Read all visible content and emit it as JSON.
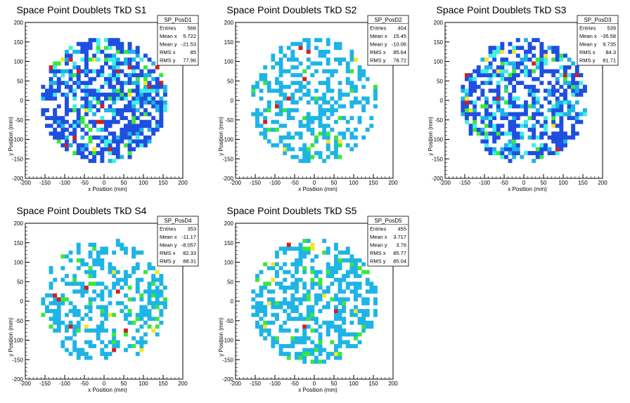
{
  "chart_data": [
    {
      "type": "heatmap",
      "title": "Space Point Doublets TkD S1",
      "xlabel": "x Position (mm)",
      "ylabel": "y Position (mm)",
      "xlim": [
        -200,
        200
      ],
      "ylim": [
        -200,
        200
      ],
      "xticks": [
        -200,
        -150,
        -100,
        -50,
        0,
        50,
        100,
        150,
        200
      ],
      "yticks": [
        -200,
        -150,
        -100,
        -50,
        0,
        50,
        100,
        150,
        200
      ],
      "fill_radius": 160,
      "fill_density": 0.62,
      "dominant_color": "#1f4fe0",
      "seed": 11,
      "stats": {
        "name": "SP_PosD1",
        "rows": [
          {
            "label": "Entries",
            "value": "566"
          },
          {
            "label": "Mean x",
            "value": "5.722"
          },
          {
            "label": "Mean y",
            "value": "-21.53"
          },
          {
            "label": "RMS x",
            "value": "85"
          },
          {
            "label": "RMS y",
            "value": "77.96"
          }
        ]
      }
    },
    {
      "type": "heatmap",
      "title": "Space Point Doublets TkD S2",
      "xlabel": "x Position (mm)",
      "ylabel": "y Position (mm)",
      "xlim": [
        -200,
        200
      ],
      "ylim": [
        -200,
        200
      ],
      "xticks": [
        -200,
        -150,
        -100,
        -50,
        0,
        50,
        100,
        150,
        200
      ],
      "yticks": [
        -200,
        -150,
        -100,
        -50,
        0,
        50,
        100,
        150,
        200
      ],
      "fill_radius": 160,
      "fill_density": 0.42,
      "dominant_color": "#1eb4e6",
      "seed": 23,
      "stats": {
        "name": "SP_PosD2",
        "rows": [
          {
            "label": "Entries",
            "value": "404"
          },
          {
            "label": "Mean x",
            "value": "15.45"
          },
          {
            "label": "Mean y",
            "value": "-10.06"
          },
          {
            "label": "RMS x",
            "value": "85.64"
          },
          {
            "label": "RMS y",
            "value": "78.72"
          }
        ]
      }
    },
    {
      "type": "heatmap",
      "title": "Space Point Doublets TkD S3",
      "xlabel": "x Position (mm)",
      "ylabel": "y Position (mm)",
      "xlim": [
        -200,
        200
      ],
      "ylim": [
        -200,
        200
      ],
      "xticks": [
        -200,
        -150,
        -100,
        -50,
        0,
        50,
        100,
        150,
        200
      ],
      "yticks": [
        -200,
        -150,
        -100,
        -50,
        0,
        50,
        100,
        150,
        200
      ],
      "fill_radius": 160,
      "fill_density": 0.58,
      "dominant_color": "#1f4fe0",
      "seed": 37,
      "stats": {
        "name": "SP_PosD3",
        "rows": [
          {
            "label": "Entries",
            "value": "539"
          },
          {
            "label": "Mean x",
            "value": "-35.58"
          },
          {
            "label": "Mean y",
            "value": "9.735"
          },
          {
            "label": "RMS x",
            "value": "84.3"
          },
          {
            "label": "RMS y",
            "value": "81.71"
          }
        ]
      }
    },
    {
      "type": "heatmap",
      "title": "Space Point Doublets TkD S4",
      "xlabel": "x Position (mm)",
      "ylabel": "y Position (mm)",
      "xlim": [
        -200,
        200
      ],
      "ylim": [
        -200,
        200
      ],
      "xticks": [
        -200,
        -150,
        -100,
        -50,
        0,
        50,
        100,
        150,
        200
      ],
      "yticks": [
        -200,
        -150,
        -100,
        -50,
        0,
        50,
        100,
        150,
        200
      ],
      "fill_radius": 160,
      "fill_density": 0.38,
      "dominant_color": "#1eb4e6",
      "seed": 51,
      "stats": {
        "name": "SP_PosD4",
        "rows": [
          {
            "label": "Entries",
            "value": "353"
          },
          {
            "label": "Mean x",
            "value": "-11.17"
          },
          {
            "label": "Mean y",
            "value": "-8.057"
          },
          {
            "label": "RMS x",
            "value": "82.33"
          },
          {
            "label": "RMS y",
            "value": "88.31"
          }
        ]
      }
    },
    {
      "type": "heatmap",
      "title": "Space Point Doublets TkD S5",
      "xlabel": "x Position (mm)",
      "ylabel": "y Position (mm)",
      "xlim": [
        -200,
        200
      ],
      "ylim": [
        -200,
        200
      ],
      "xticks": [
        -200,
        -150,
        -100,
        -50,
        0,
        50,
        100,
        150,
        200
      ],
      "yticks": [
        -200,
        -150,
        -100,
        -50,
        0,
        50,
        100,
        150,
        200
      ],
      "fill_radius": 160,
      "fill_density": 0.46,
      "dominant_color": "#1eb4e6",
      "seed": 67,
      "stats": {
        "name": "SP_PosD5",
        "rows": [
          {
            "label": "Entries",
            "value": "455"
          },
          {
            "label": "Mean x",
            "value": "3.717"
          },
          {
            "label": "Mean y",
            "value": "3.76"
          },
          {
            "label": "RMS x",
            "value": "85.77"
          },
          {
            "label": "RMS y",
            "value": "85.04"
          }
        ]
      }
    }
  ],
  "palette": {
    "blue": "#1f4fe0",
    "light_blue": "#1eb4e6",
    "cyan": "#3ff0e6",
    "green": "#38e83a",
    "yellow": "#f5e61e",
    "red": "#d41e1e",
    "axis": "#000000",
    "frame": "#000000"
  }
}
